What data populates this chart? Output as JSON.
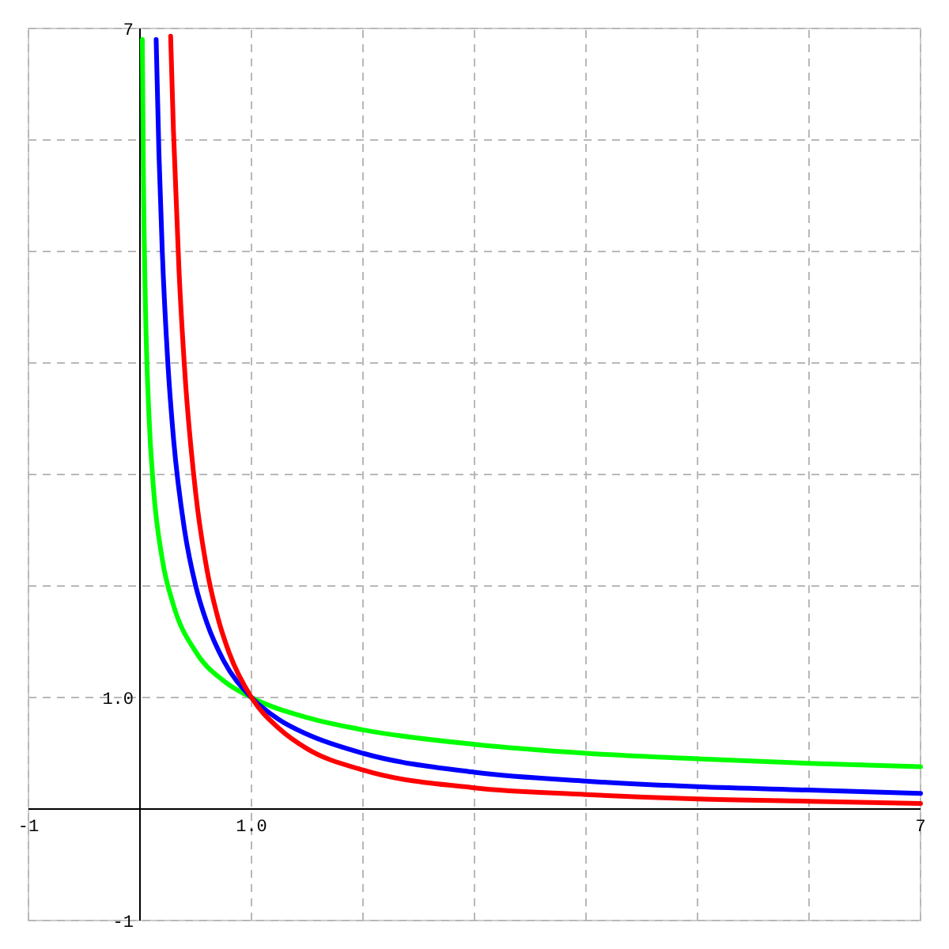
{
  "chart_data": {
    "type": "line",
    "xlim": [
      -1,
      7
    ],
    "ylim": [
      -1,
      7
    ],
    "xticks": [
      {
        "value": -1,
        "label": "-1"
      },
      {
        "value": 0,
        "label": null
      },
      {
        "value": 1,
        "label": "1.0"
      },
      {
        "value": 2,
        "label": null
      },
      {
        "value": 3,
        "label": null
      },
      {
        "value": 4,
        "label": null
      },
      {
        "value": 5,
        "label": null
      },
      {
        "value": 6,
        "label": null
      },
      {
        "value": 7,
        "label": "7"
      }
    ],
    "yticks": [
      {
        "value": -1,
        "label": "-1"
      },
      {
        "value": 0,
        "label": null
      },
      {
        "value": 1,
        "label": "1.0"
      },
      {
        "value": 2,
        "label": null
      },
      {
        "value": 3,
        "label": null
      },
      {
        "value": 4,
        "label": null
      },
      {
        "value": 5,
        "label": null
      },
      {
        "value": 6,
        "label": null
      },
      {
        "value": 7,
        "label": "7"
      }
    ],
    "grid": true,
    "marker": "none",
    "line_style": "solid",
    "series": [
      {
        "color": "#00ff00",
        "x": [
          0.021,
          0.03,
          0.05,
          0.08,
          0.12,
          0.2,
          0.3,
          0.5,
          0.75,
          1,
          1.5,
          2,
          3,
          4,
          5,
          6,
          7
        ],
        "values": [
          6.9,
          5.77,
          4.47,
          3.54,
          2.89,
          2.24,
          1.83,
          1.41,
          1.15,
          1,
          0.82,
          0.71,
          0.58,
          0.5,
          0.45,
          0.41,
          0.38
        ]
      },
      {
        "color": "#0000ff",
        "x": [
          0.145,
          0.17,
          0.2,
          0.25,
          0.3,
          0.4,
          0.5,
          0.6,
          0.75,
          1,
          1.25,
          1.5,
          2,
          3,
          4,
          5,
          6,
          7
        ],
        "values": [
          6.9,
          5.88,
          5,
          4,
          3.33,
          2.5,
          2,
          1.67,
          1.33,
          1,
          0.8,
          0.67,
          0.5,
          0.33,
          0.25,
          0.2,
          0.17,
          0.14
        ]
      },
      {
        "color": "#ff0000",
        "x": [
          0.275,
          0.3,
          0.35,
          0.4,
          0.5,
          0.6,
          0.7,
          0.8,
          1,
          1.25,
          1.5,
          2,
          3,
          4,
          5,
          6,
          7
        ],
        "values": [
          6.93,
          6.09,
          4.83,
          3.95,
          2.83,
          2.15,
          1.71,
          1.4,
          1,
          0.72,
          0.54,
          0.35,
          0.19,
          0.13,
          0.09,
          0.07,
          0.05
        ]
      }
    ]
  }
}
